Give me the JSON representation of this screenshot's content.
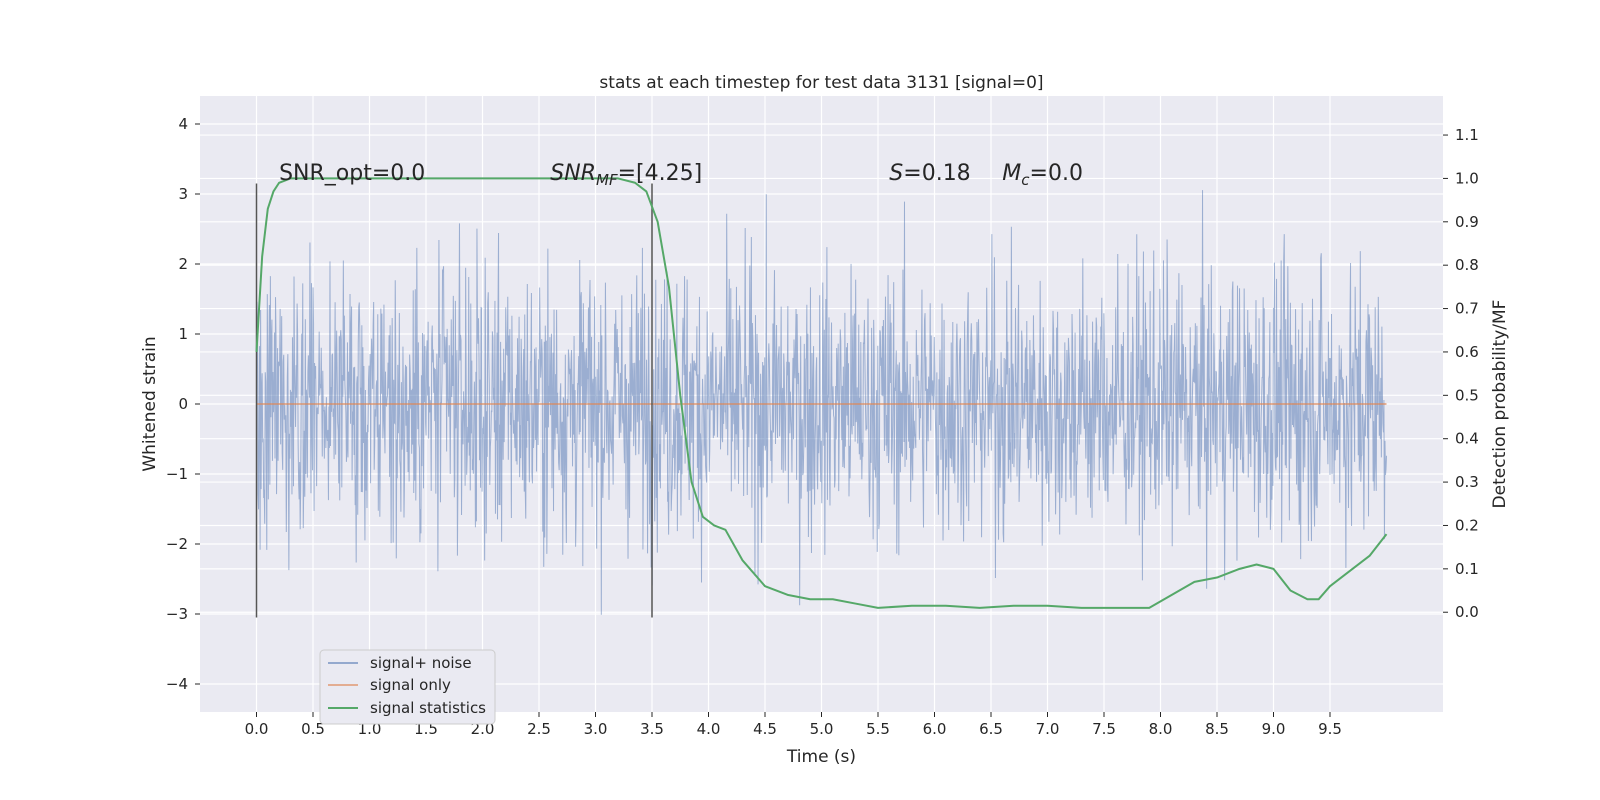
{
  "chart_data": {
    "type": "line",
    "title": "stats at each timestep for test data 3131 [signal=0]",
    "xlabel": "Time (s)",
    "ylabel": "Whitened strain",
    "ylabel_right": "Detection probability/MF",
    "xlim": [
      -0.5,
      10.5
    ],
    "ylim": [
      -4.4,
      4.4
    ],
    "ylim_right": [
      -0.23,
      1.19
    ],
    "x_ticks": [
      0.0,
      0.5,
      1.0,
      1.5,
      2.0,
      2.5,
      3.0,
      3.5,
      4.0,
      4.5,
      5.0,
      5.5,
      6.0,
      6.5,
      7.0,
      7.5,
      8.0,
      8.5,
      9.0,
      9.5
    ],
    "x_tick_labels": [
      "0.0",
      "0.5",
      "1.0",
      "1.5",
      "2.0",
      "2.5",
      "3.0",
      "3.5",
      "4.0",
      "4.5",
      "5.0",
      "5.5",
      "6.0",
      "6.5",
      "7.0",
      "7.5",
      "8.0",
      "8.5",
      "9.0",
      "9.5"
    ],
    "y_ticks": [
      4,
      3,
      2,
      1,
      0,
      -1,
      -2,
      -3,
      -4
    ],
    "y_tick_labels": [
      "4",
      "3",
      "2",
      "1",
      "0",
      "−1",
      "−2",
      "−3",
      "−4"
    ],
    "y_right_ticks": [
      1.1,
      1.0,
      0.9,
      0.8,
      0.7,
      0.6,
      0.5,
      0.4,
      0.3,
      0.2,
      0.1,
      0.0
    ],
    "y_right_tick_labels": [
      "1.1",
      "1.0",
      "0.9",
      "0.8",
      "0.7",
      "0.6",
      "0.5",
      "0.4",
      "0.3",
      "0.2",
      "0.1",
      "0.0"
    ],
    "grid": true,
    "legend_position": "bottom-left",
    "series": [
      {
        "name": "signal+ noise",
        "color": "#4c72b0",
        "axis": "left",
        "x_range": [
          0.0,
          10.0
        ],
        "envelope_dense": [
          -1.3,
          1.3
        ],
        "typical_range": [
          -2.5,
          3.0
        ],
        "extremes": [
          -3.9,
          4.05
        ]
      },
      {
        "name": "signal only",
        "color": "#dd8452",
        "axis": "left",
        "x": [
          0.0,
          10.0
        ],
        "y": [
          0.0,
          0.0
        ]
      },
      {
        "name": "signal statistics",
        "color": "#55a868",
        "axis": "right",
        "x": [
          0.0,
          0.05,
          0.1,
          0.15,
          0.2,
          0.3,
          0.5,
          1.0,
          2.0,
          3.0,
          3.2,
          3.35,
          3.45,
          3.55,
          3.65,
          3.75,
          3.85,
          3.95,
          4.05,
          4.15,
          4.3,
          4.5,
          4.7,
          4.9,
          5.1,
          5.3,
          5.5,
          5.8,
          6.1,
          6.4,
          6.7,
          7.0,
          7.3,
          7.6,
          7.9,
          8.1,
          8.3,
          8.5,
          8.7,
          8.85,
          9.0,
          9.15,
          9.3,
          9.4,
          9.5,
          9.7,
          9.85,
          10.0
        ],
        "y": [
          0.6,
          0.82,
          0.93,
          0.97,
          0.99,
          1.0,
          1.0,
          1.0,
          1.0,
          1.0,
          1.0,
          0.99,
          0.97,
          0.9,
          0.75,
          0.5,
          0.3,
          0.22,
          0.2,
          0.19,
          0.12,
          0.06,
          0.04,
          0.03,
          0.03,
          0.02,
          0.01,
          0.015,
          0.015,
          0.01,
          0.015,
          0.015,
          0.01,
          0.01,
          0.01,
          0.04,
          0.07,
          0.08,
          0.1,
          0.11,
          0.1,
          0.05,
          0.03,
          0.03,
          0.06,
          0.1,
          0.13,
          0.18
        ]
      }
    ],
    "vertical_lines": [
      {
        "x": 0.0,
        "y_range": [
          -3.05,
          3.15
        ],
        "color": "#555555"
      },
      {
        "x": 3.5,
        "y_range": [
          -3.05,
          3.15
        ],
        "color": "#555555"
      }
    ],
    "annotations": [
      {
        "label": "SNR_opt=0.0",
        "x": 0.2,
        "y": 3.2
      },
      {
        "label": "SNR_MF=[4.25]",
        "x": 2.6,
        "y": 3.2,
        "base": "SNR",
        "sub": "MF",
        "rest": "=[4.25]"
      },
      {
        "label": "S=0.18",
        "x": 5.6,
        "y": 3.2,
        "base": "S",
        "rest": "=0.18"
      },
      {
        "label": "M_c=0.0",
        "x": 6.6,
        "y": 3.2,
        "base": "M",
        "sub": "c",
        "rest": "=0.0"
      }
    ]
  }
}
